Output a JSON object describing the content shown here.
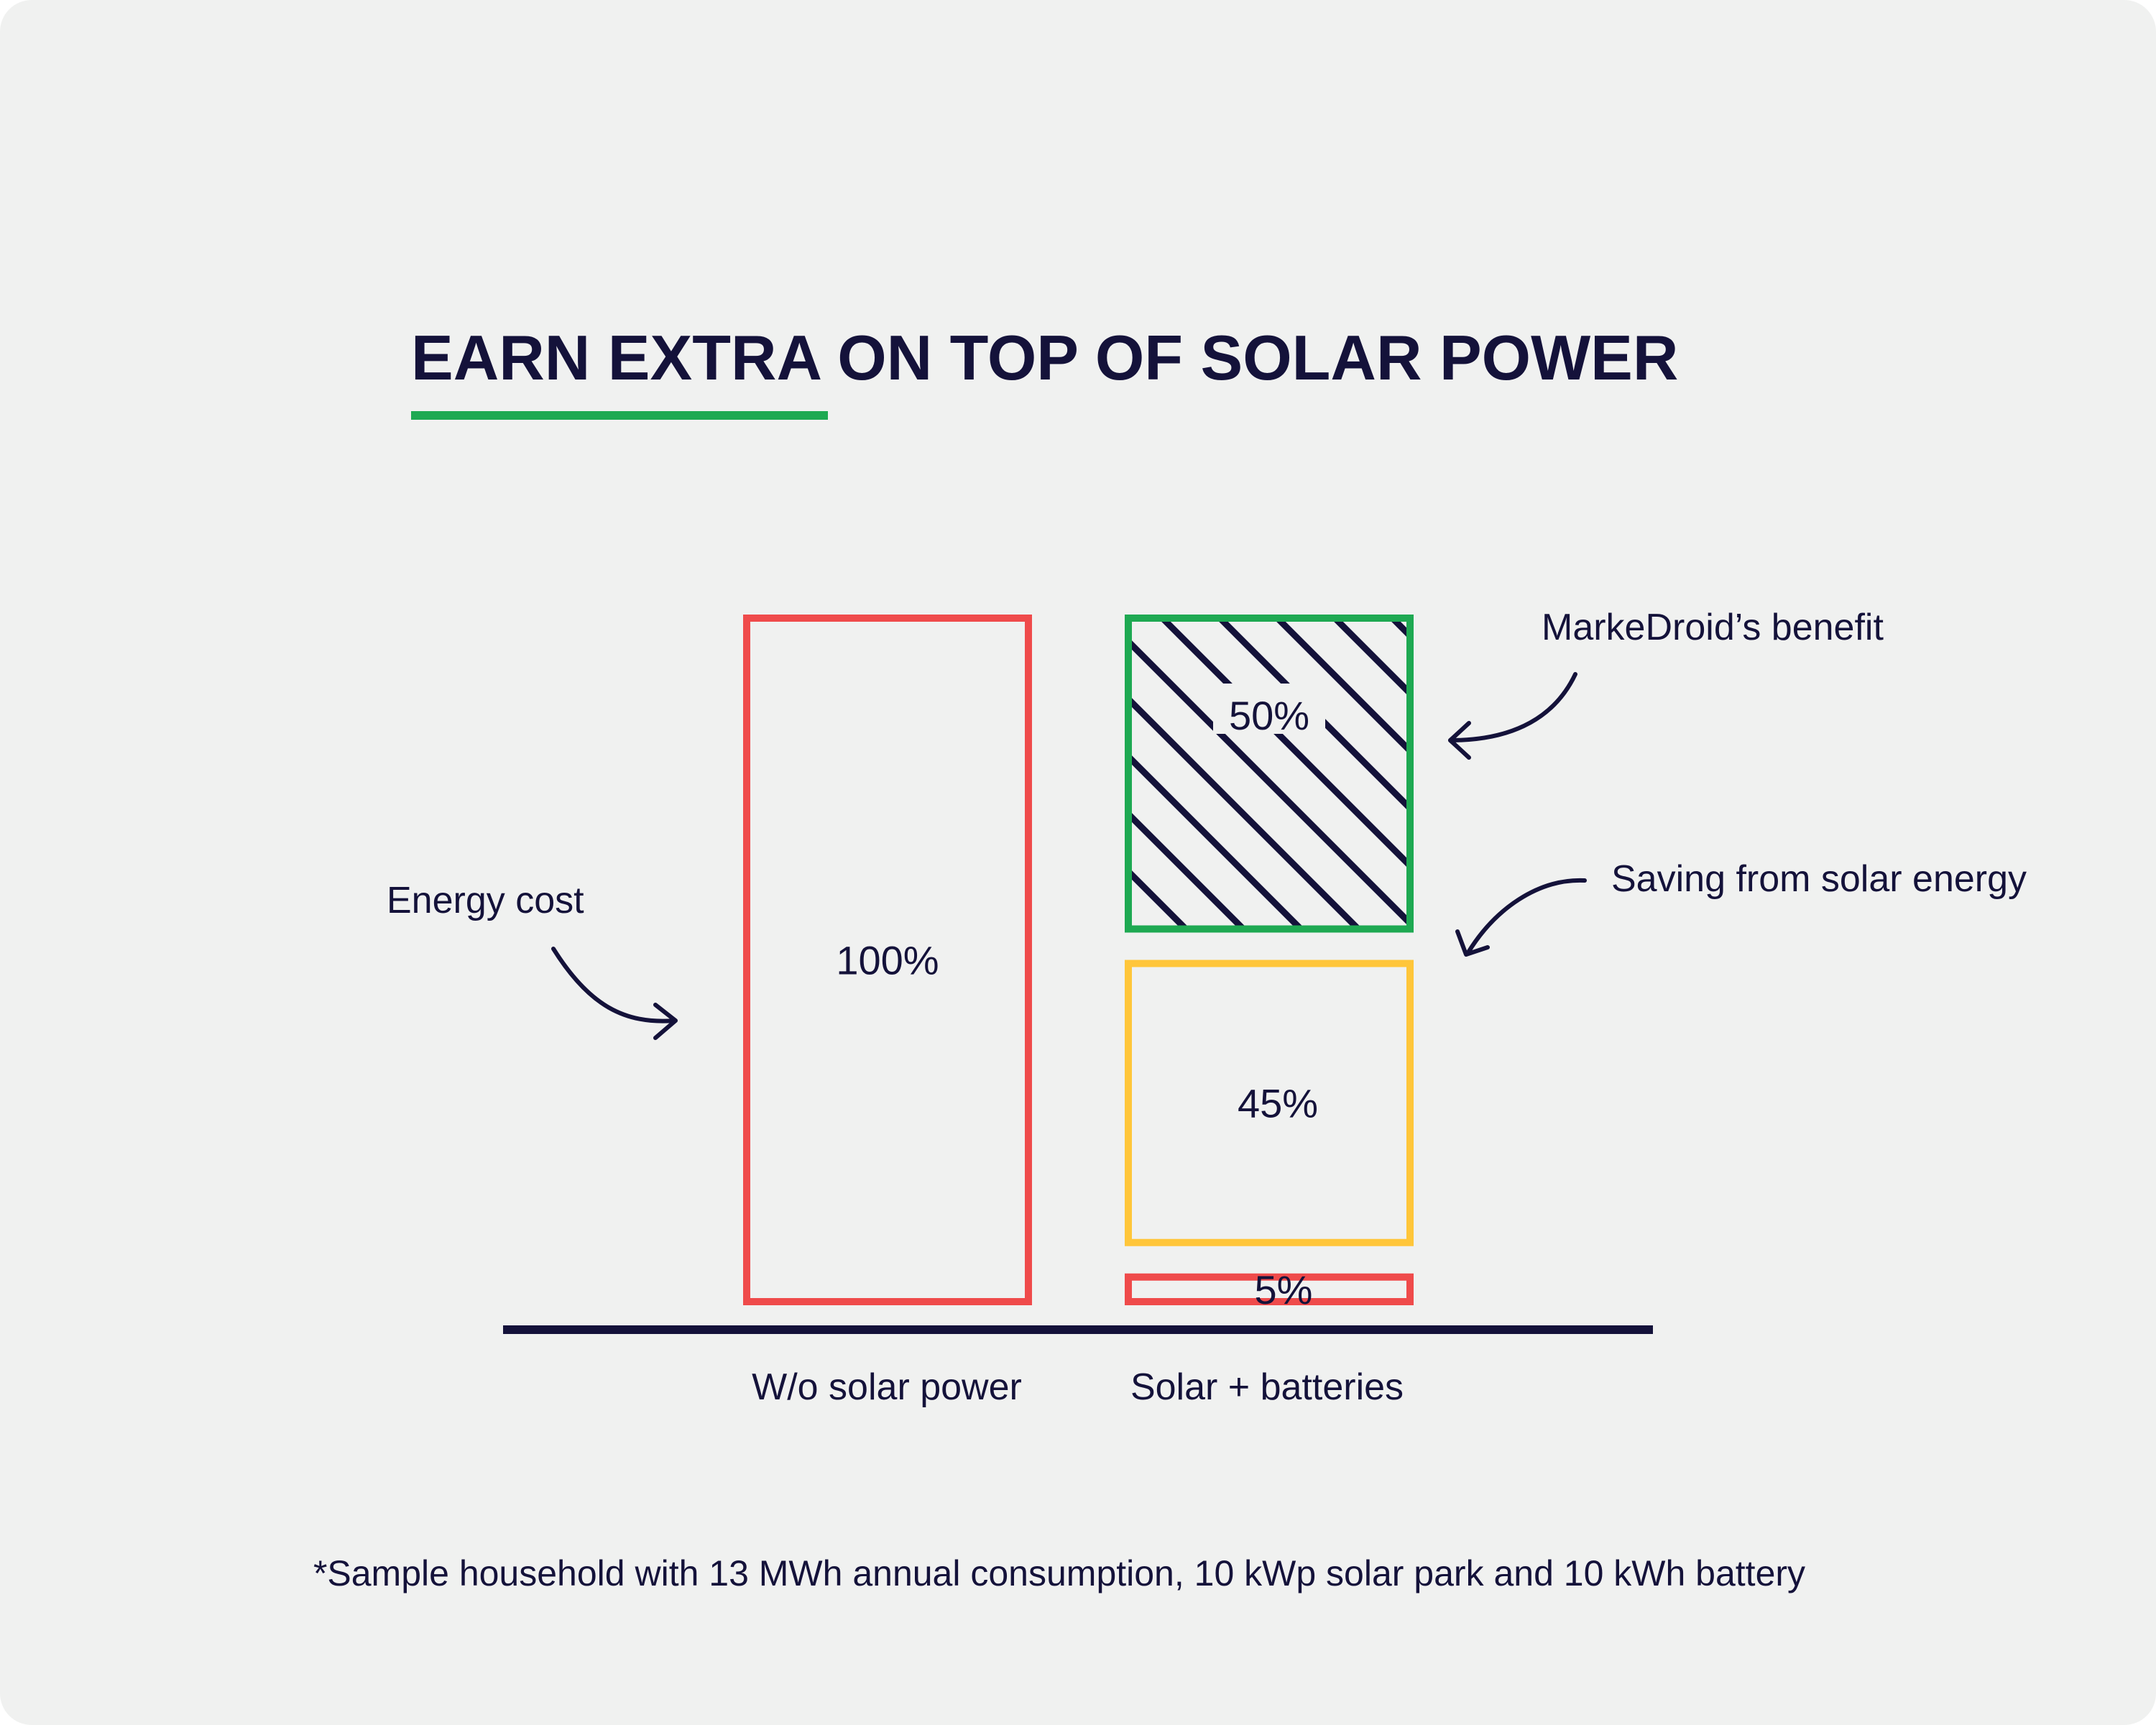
{
  "title": "EARN EXTRA ON TOP OF SOLAR POWER",
  "colors": {
    "ink": "#14123a",
    "red": "#ef4b4b",
    "yellow": "#ffc63a",
    "green": "#1ea952",
    "background": "#f0f1f0"
  },
  "chart_data": {
    "type": "bar",
    "stacked": true,
    "title": "EARN EXTRA ON TOP OF SOLAR POWER",
    "categories": [
      "W/o solar power",
      "Solar + batteries"
    ],
    "series": [
      {
        "values": [
          100,
          5
        ],
        "value_labels": [
          "100%",
          "5%"
        ],
        "color": "#ef4b4b",
        "pattern": "none"
      },
      {
        "values": [
          0,
          45
        ],
        "value_labels": [
          "",
          "45%"
        ],
        "color": "#ffc63a",
        "pattern": "none"
      },
      {
        "values": [
          0,
          50
        ],
        "value_labels": [
          "",
          "50%"
        ],
        "color": "#1ea952",
        "pattern": "diagonal-hatch"
      }
    ],
    "ylim": [
      0,
      100
    ],
    "grid": false,
    "annotations": [
      {
        "text": "Energy cost",
        "target": "W/o solar power"
      },
      {
        "text": "MarkeDroid’s benefit",
        "target": "Solar + batteries / 50%"
      },
      {
        "text": "Saving from solar energy",
        "target": "Solar + batteries / 45%"
      }
    ]
  },
  "footnote": "*Sample household with 13 MWh annual consumption, 10 kWp solar park and 10 kWh battery"
}
